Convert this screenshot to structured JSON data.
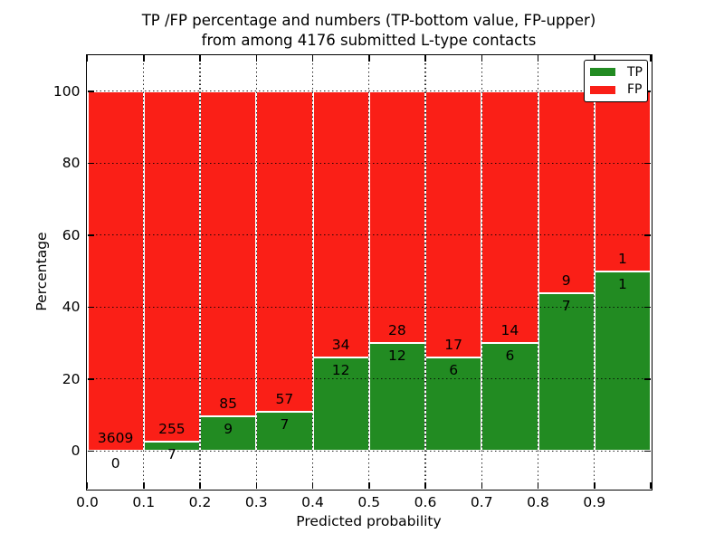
{
  "figure": {
    "title_line1": "TP /FP percentage and numbers (TP-bottom value, FP-upper)",
    "title_line2": "from among 4176 submitted L-type contacts",
    "background": "#ffffff"
  },
  "axes": {
    "ylabel": "Percentage",
    "xlabel": "Predicted probability",
    "y_ticks": [
      0,
      20,
      40,
      60,
      80,
      100
    ],
    "x_ticks": [
      "0.0",
      "0.1",
      "0.2",
      "0.3",
      "0.4",
      "0.5",
      "0.6",
      "0.7",
      "0.8",
      "0.9"
    ],
    "xlim": [
      0.0,
      1.0
    ],
    "ylim": [
      -10.5,
      110
    ],
    "grid": true,
    "grid_style": "dotted",
    "grid_color": "#000000"
  },
  "legend": {
    "position": "upper-right",
    "entries": [
      {
        "label": "TP",
        "color": "#228b22"
      },
      {
        "label": "FP",
        "color": "#fa1f17"
      }
    ]
  },
  "chart_data": {
    "type": "bar",
    "stacked": true,
    "normalized_to_percent": 100,
    "title": "TP /FP percentage and numbers (TP-bottom value, FP-upper) from among 4176 submitted L-type contacts",
    "xlabel": "Predicted probability",
    "ylabel": "Percentage",
    "total_contacts": 4176,
    "bin_width": 0.1,
    "bar_align": "edge",
    "bar_edge_color": "#ffffff",
    "categories": [
      "0.0-0.1",
      "0.1-0.2",
      "0.2-0.3",
      "0.3-0.4",
      "0.4-0.5",
      "0.5-0.6",
      "0.6-0.7",
      "0.7-0.8",
      "0.8-0.9",
      "0.9-1.0"
    ],
    "x_starts": [
      0.0,
      0.1,
      0.2,
      0.3,
      0.4,
      0.5,
      0.6,
      0.7,
      0.8,
      0.9
    ],
    "series": [
      {
        "name": "TP",
        "color": "#228b22",
        "counts": [
          0,
          7,
          9,
          7,
          12,
          12,
          6,
          6,
          7,
          1
        ]
      },
      {
        "name": "FP",
        "color": "#fa1f17",
        "counts": [
          3609,
          255,
          85,
          57,
          34,
          28,
          17,
          14,
          9,
          1
        ]
      }
    ],
    "tp_percent": [
      0.0,
      2.67,
      9.57,
      10.94,
      26.09,
      30.0,
      26.09,
      30.0,
      43.75,
      50.0
    ]
  }
}
